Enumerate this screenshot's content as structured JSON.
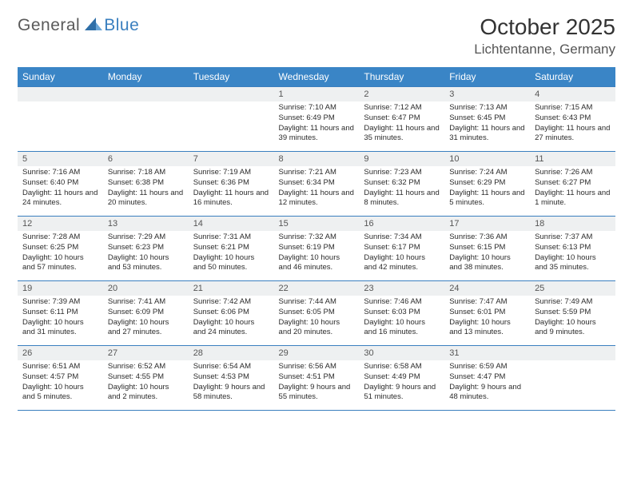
{
  "brand": {
    "part1": "General",
    "part2": "Blue"
  },
  "title": "October 2025",
  "subtitle": "Lichtentanne, Germany",
  "colors": {
    "header_bg": "#3a85c6",
    "header_text": "#ffffff",
    "border": "#3a7fbf",
    "daynum_bg": "#eef0f1",
    "text": "#2b2b2b"
  },
  "day_headers": [
    "Sunday",
    "Monday",
    "Tuesday",
    "Wednesday",
    "Thursday",
    "Friday",
    "Saturday"
  ],
  "weeks": [
    [
      {
        "empty": true
      },
      {
        "empty": true
      },
      {
        "empty": true
      },
      {
        "n": "1",
        "sunrise": "7:10 AM",
        "sunset": "6:49 PM",
        "daylight": "11 hours and 39 minutes."
      },
      {
        "n": "2",
        "sunrise": "7:12 AM",
        "sunset": "6:47 PM",
        "daylight": "11 hours and 35 minutes."
      },
      {
        "n": "3",
        "sunrise": "7:13 AM",
        "sunset": "6:45 PM",
        "daylight": "11 hours and 31 minutes."
      },
      {
        "n": "4",
        "sunrise": "7:15 AM",
        "sunset": "6:43 PM",
        "daylight": "11 hours and 27 minutes."
      }
    ],
    [
      {
        "n": "5",
        "sunrise": "7:16 AM",
        "sunset": "6:40 PM",
        "daylight": "11 hours and 24 minutes."
      },
      {
        "n": "6",
        "sunrise": "7:18 AM",
        "sunset": "6:38 PM",
        "daylight": "11 hours and 20 minutes."
      },
      {
        "n": "7",
        "sunrise": "7:19 AM",
        "sunset": "6:36 PM",
        "daylight": "11 hours and 16 minutes."
      },
      {
        "n": "8",
        "sunrise": "7:21 AM",
        "sunset": "6:34 PM",
        "daylight": "11 hours and 12 minutes."
      },
      {
        "n": "9",
        "sunrise": "7:23 AM",
        "sunset": "6:32 PM",
        "daylight": "11 hours and 8 minutes."
      },
      {
        "n": "10",
        "sunrise": "7:24 AM",
        "sunset": "6:29 PM",
        "daylight": "11 hours and 5 minutes."
      },
      {
        "n": "11",
        "sunrise": "7:26 AM",
        "sunset": "6:27 PM",
        "daylight": "11 hours and 1 minute."
      }
    ],
    [
      {
        "n": "12",
        "sunrise": "7:28 AM",
        "sunset": "6:25 PM",
        "daylight": "10 hours and 57 minutes."
      },
      {
        "n": "13",
        "sunrise": "7:29 AM",
        "sunset": "6:23 PM",
        "daylight": "10 hours and 53 minutes."
      },
      {
        "n": "14",
        "sunrise": "7:31 AM",
        "sunset": "6:21 PM",
        "daylight": "10 hours and 50 minutes."
      },
      {
        "n": "15",
        "sunrise": "7:32 AM",
        "sunset": "6:19 PM",
        "daylight": "10 hours and 46 minutes."
      },
      {
        "n": "16",
        "sunrise": "7:34 AM",
        "sunset": "6:17 PM",
        "daylight": "10 hours and 42 minutes."
      },
      {
        "n": "17",
        "sunrise": "7:36 AM",
        "sunset": "6:15 PM",
        "daylight": "10 hours and 38 minutes."
      },
      {
        "n": "18",
        "sunrise": "7:37 AM",
        "sunset": "6:13 PM",
        "daylight": "10 hours and 35 minutes."
      }
    ],
    [
      {
        "n": "19",
        "sunrise": "7:39 AM",
        "sunset": "6:11 PM",
        "daylight": "10 hours and 31 minutes."
      },
      {
        "n": "20",
        "sunrise": "7:41 AM",
        "sunset": "6:09 PM",
        "daylight": "10 hours and 27 minutes."
      },
      {
        "n": "21",
        "sunrise": "7:42 AM",
        "sunset": "6:06 PM",
        "daylight": "10 hours and 24 minutes."
      },
      {
        "n": "22",
        "sunrise": "7:44 AM",
        "sunset": "6:05 PM",
        "daylight": "10 hours and 20 minutes."
      },
      {
        "n": "23",
        "sunrise": "7:46 AM",
        "sunset": "6:03 PM",
        "daylight": "10 hours and 16 minutes."
      },
      {
        "n": "24",
        "sunrise": "7:47 AM",
        "sunset": "6:01 PM",
        "daylight": "10 hours and 13 minutes."
      },
      {
        "n": "25",
        "sunrise": "7:49 AM",
        "sunset": "5:59 PM",
        "daylight": "10 hours and 9 minutes."
      }
    ],
    [
      {
        "n": "26",
        "sunrise": "6:51 AM",
        "sunset": "4:57 PM",
        "daylight": "10 hours and 5 minutes."
      },
      {
        "n": "27",
        "sunrise": "6:52 AM",
        "sunset": "4:55 PM",
        "daylight": "10 hours and 2 minutes."
      },
      {
        "n": "28",
        "sunrise": "6:54 AM",
        "sunset": "4:53 PM",
        "daylight": "9 hours and 58 minutes."
      },
      {
        "n": "29",
        "sunrise": "6:56 AM",
        "sunset": "4:51 PM",
        "daylight": "9 hours and 55 minutes."
      },
      {
        "n": "30",
        "sunrise": "6:58 AM",
        "sunset": "4:49 PM",
        "daylight": "9 hours and 51 minutes."
      },
      {
        "n": "31",
        "sunrise": "6:59 AM",
        "sunset": "4:47 PM",
        "daylight": "9 hours and 48 minutes."
      },
      {
        "empty": true
      }
    ]
  ],
  "labels": {
    "sunrise": "Sunrise: ",
    "sunset": "Sunset: ",
    "daylight": "Daylight: "
  }
}
